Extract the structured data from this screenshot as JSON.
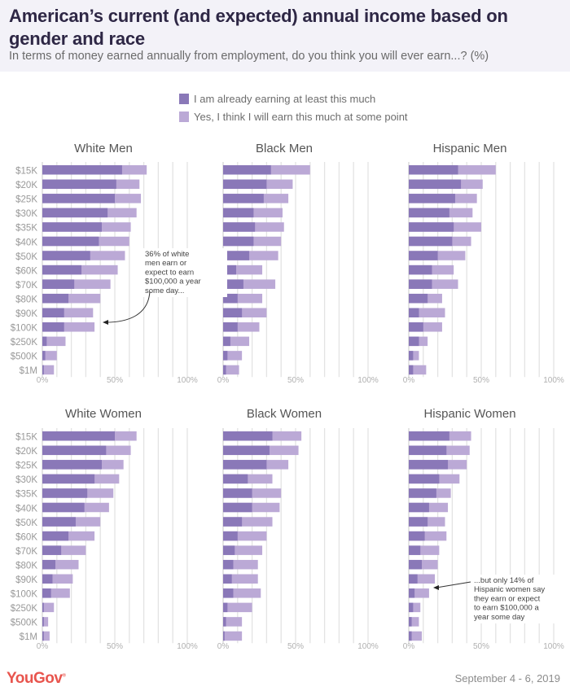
{
  "header": {
    "title": "American’s current (and expected) annual income based on gender and race",
    "subtitle": "In terms of money earned annually from employment, do you think you will ever earn...? (%)"
  },
  "legend": [
    {
      "label": "I am already earning at least this much",
      "color": "#8a78b8"
    },
    {
      "label": "Yes, I think I will earn this much at some point",
      "color": "#bba9d6"
    }
  ],
  "footer": {
    "logo": "YouGov",
    "date": "September 4 - 6, 2019"
  },
  "chart_data": {
    "type": "bar",
    "orientation": "horizontal",
    "stacked": true,
    "title": "American’s current (and expected) annual income based on gender and race",
    "subtitle": "In terms of money earned annually from employment, do you think you will ever earn...? (%)",
    "categories": [
      "$15K",
      "$20K",
      "$25K",
      "$30K",
      "$35K",
      "$40K",
      "$50K",
      "$60K",
      "$70K",
      "$80K",
      "$90K",
      "$100K",
      "$250K",
      "$500K",
      "$1M"
    ],
    "xlim": [
      0,
      100
    ],
    "x_ticks": [
      "0%",
      "50%",
      "100%"
    ],
    "grid": true,
    "grid_step": 10,
    "legend_position": "top-center",
    "series_names": [
      "I am already earning at least this much",
      "Yes, I think I will earn this much at some point"
    ],
    "colors": {
      "already": "#8a78b8",
      "expect": "#bba9d6",
      "grid": "#e3e3e3"
    },
    "note": "'total' = already earning + expect to earn (bar end); 'already' = dark segment",
    "panels": [
      {
        "name": "White Men",
        "already": [
          55,
          51,
          50,
          45,
          41,
          39,
          33,
          27,
          22,
          18,
          15,
          15,
          3,
          2,
          1
        ],
        "total": [
          72,
          67,
          68,
          65,
          61,
          60,
          57,
          52,
          47,
          40,
          35,
          36,
          16,
          10,
          8
        ]
      },
      {
        "name": "Black Men",
        "already": [
          33,
          30,
          28,
          21,
          22,
          21,
          18,
          9,
          14,
          10,
          13,
          10,
          5,
          3,
          2
        ],
        "total": [
          60,
          48,
          45,
          41,
          42,
          40,
          38,
          27,
          36,
          27,
          30,
          25,
          18,
          13,
          11
        ]
      },
      {
        "name": "Hispanic Men",
        "already": [
          34,
          36,
          32,
          28,
          31,
          30,
          20,
          16,
          16,
          13,
          7,
          10,
          7,
          3,
          3
        ],
        "total": [
          60,
          51,
          47,
          44,
          50,
          43,
          39,
          31,
          34,
          23,
          25,
          23,
          13,
          7,
          12
        ]
      },
      {
        "name": "White Women",
        "already": [
          50,
          44,
          41,
          36,
          31,
          29,
          23,
          18,
          13,
          9,
          7,
          6,
          1,
          1,
          1
        ],
        "total": [
          65,
          61,
          56,
          53,
          49,
          46,
          40,
          36,
          30,
          25,
          21,
          19,
          8,
          4,
          5
        ]
      },
      {
        "name": "Black Women",
        "already": [
          34,
          32,
          30,
          17,
          20,
          20,
          13,
          10,
          8,
          7,
          6,
          7,
          3,
          2,
          1
        ],
        "total": [
          54,
          52,
          45,
          34,
          40,
          39,
          34,
          30,
          27,
          24,
          24,
          26,
          20,
          13,
          13
        ]
      },
      {
        "name": "Hispanic Women",
        "already": [
          28,
          26,
          27,
          21,
          19,
          14,
          13,
          11,
          8,
          9,
          6,
          4,
          3,
          2,
          2
        ],
        "total": [
          43,
          42,
          40,
          35,
          29,
          27,
          25,
          26,
          21,
          20,
          18,
          14,
          8,
          7,
          9
        ]
      }
    ],
    "annotations": [
      {
        "panel": "White Men",
        "category": "$100K",
        "text": [
          "36% of white",
          "men earn or",
          "expect to earn",
          "$100,000 a year",
          "some day..."
        ]
      },
      {
        "panel": "Hispanic Women",
        "category": "$100K",
        "text": [
          "...but only 14% of",
          "Hispanic women say",
          "they earn or expect",
          "to earn $100,000 a",
          "year some day"
        ]
      }
    ]
  }
}
